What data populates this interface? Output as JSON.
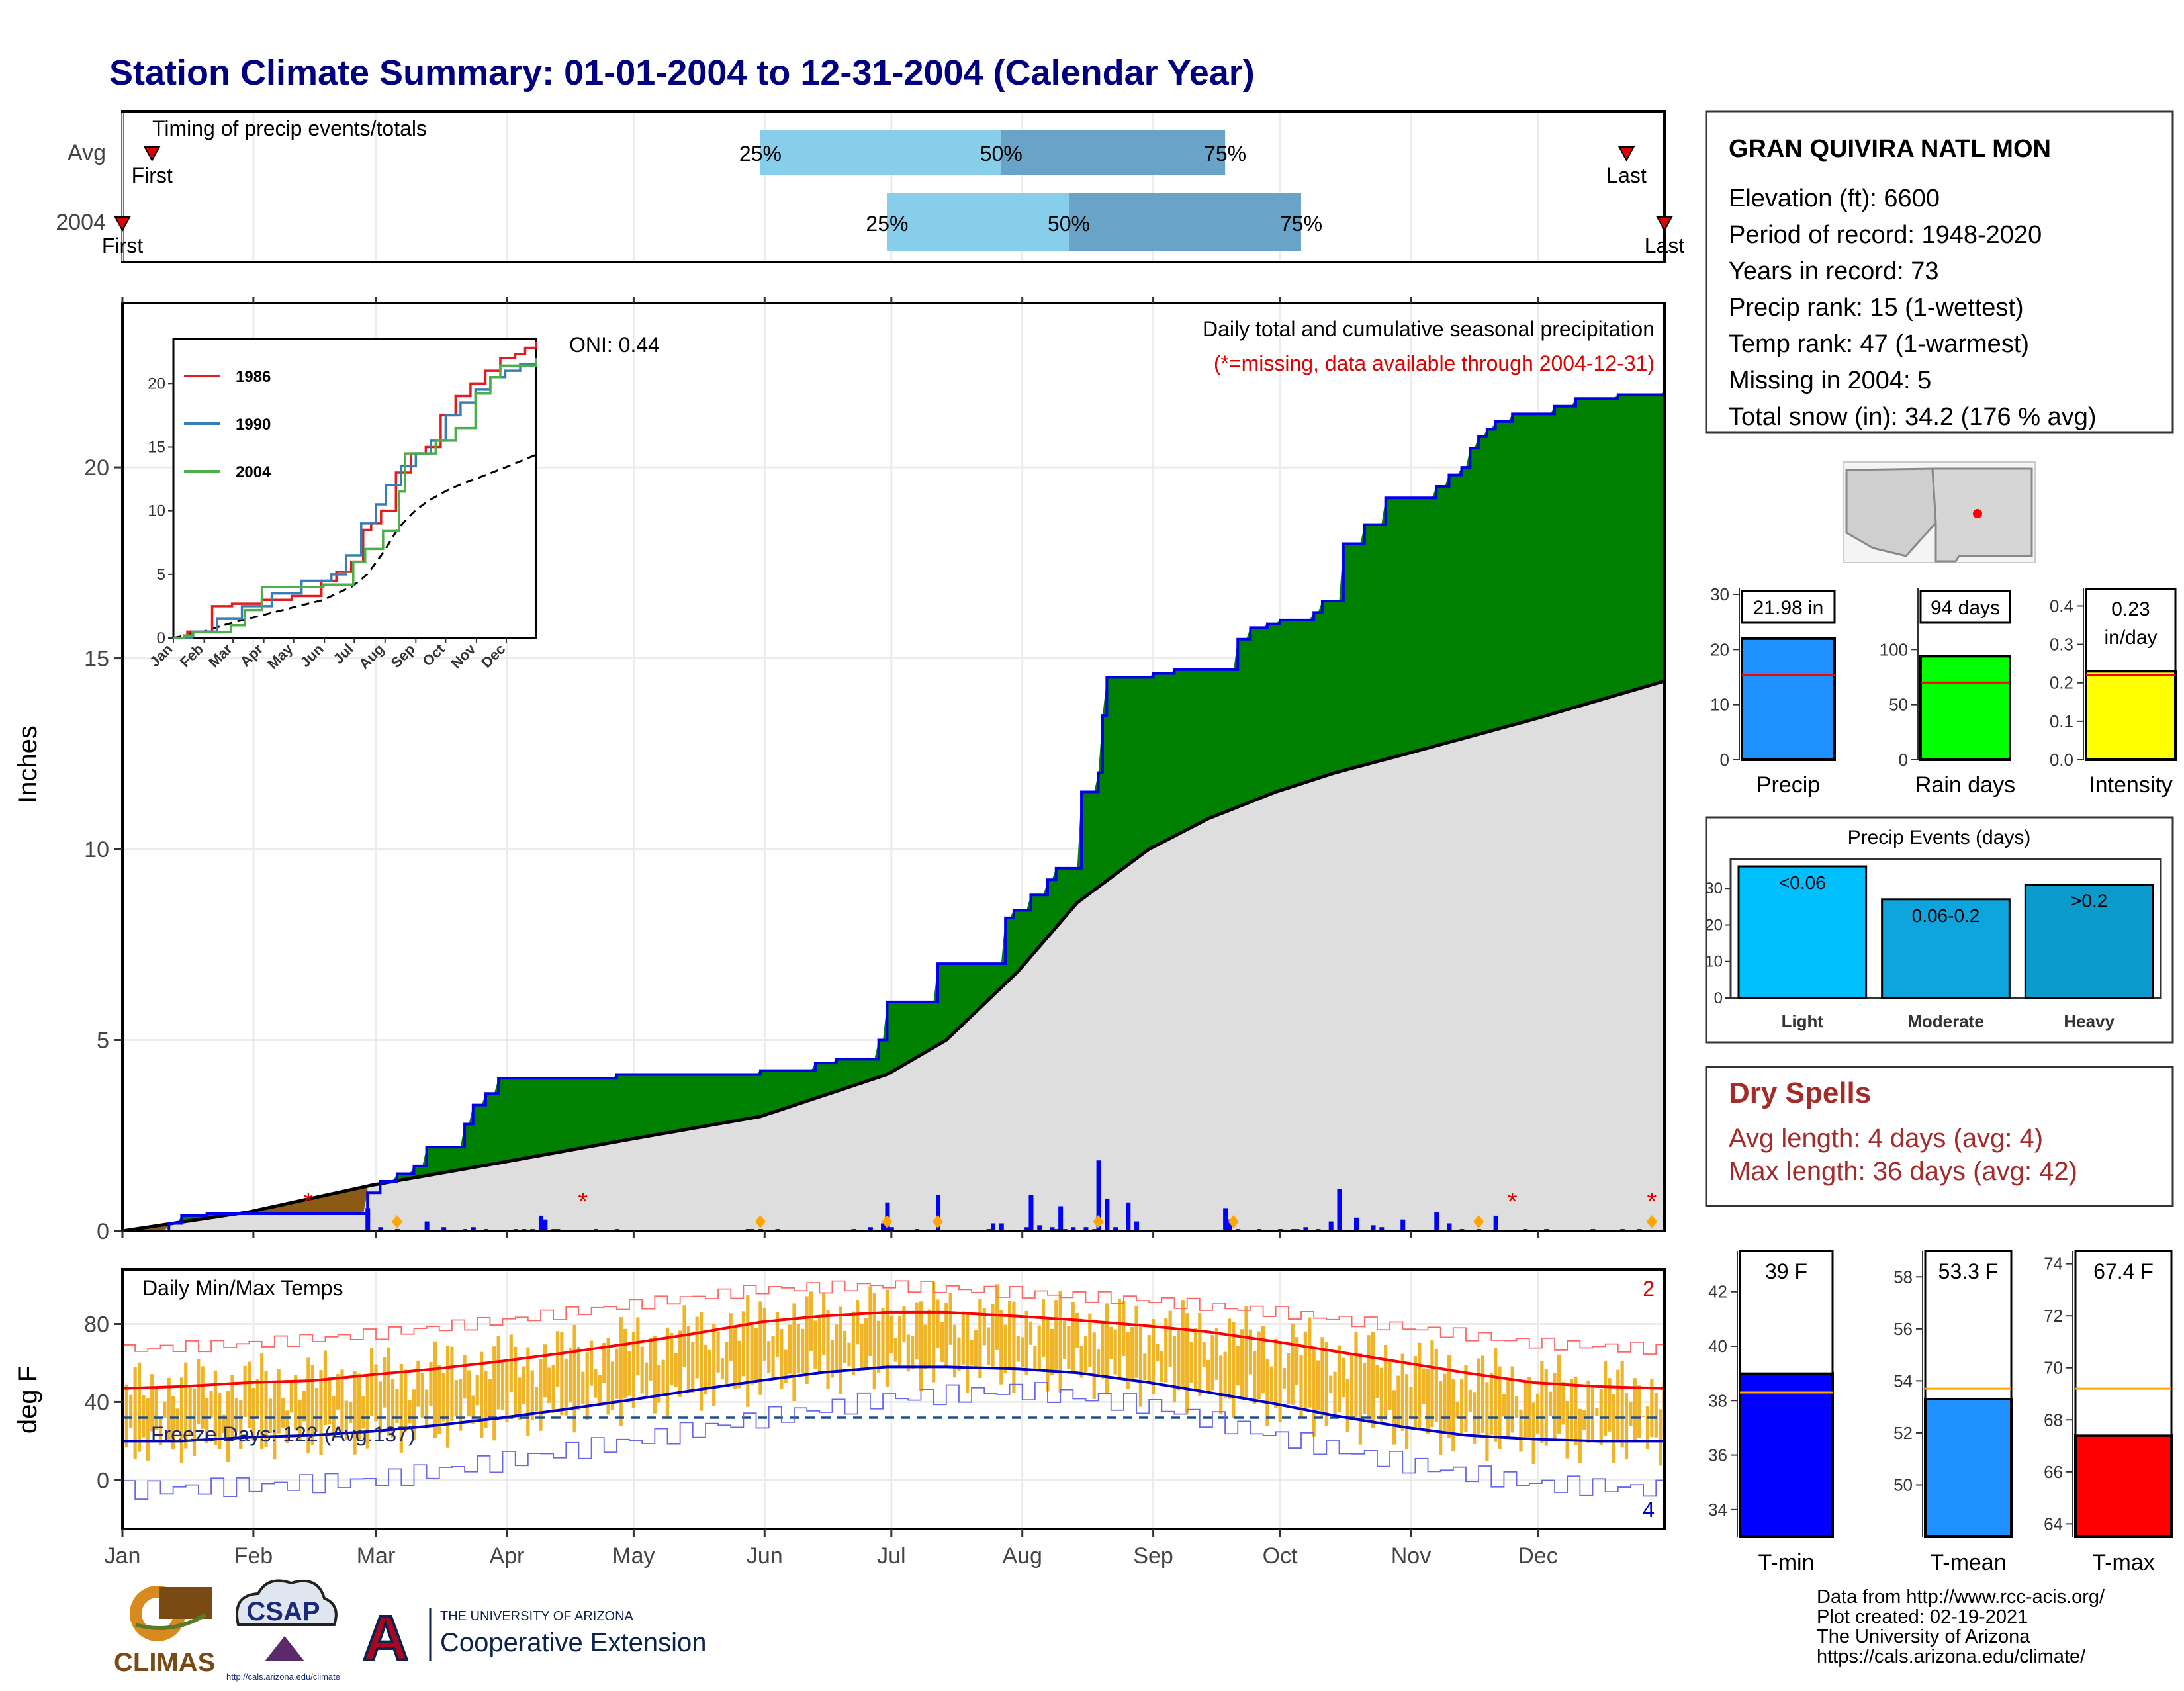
{
  "page_title": "Station Climate Summary: 01-01-2004 to 12-31-2004 (Calendar Year)",
  "colors": {
    "title": "#000080",
    "green_fill": "#008000",
    "avg_fill": "#dedede",
    "bar_blue": "#0000ff",
    "quartile_light": "#87ceeb",
    "quartile_dark": "#6aa3c8",
    "tmax": "#ff0000",
    "tmin": "#0000cc",
    "temp_bars": "#f0b429",
    "brown": "#8b5a14",
    "dry_spell_text": "#a52a2a"
  },
  "timing_panel": {
    "title": "Timing of precip events/totals",
    "rows": [
      "Avg",
      "2004"
    ],
    "first_label": "First",
    "last_label": "Last",
    "avg": {
      "first_doy": 8,
      "q25_doy": 152,
      "q50_doy": 209,
      "q75_doy": 262,
      "last_doy": 357
    },
    "y2004": {
      "first_doy": 1,
      "q25_doy": 182,
      "q50_doy": 225,
      "q75_doy": 280,
      "last_doy": 366
    },
    "quartile_labels": [
      "25%",
      "50%",
      "75%"
    ]
  },
  "precip_panel": {
    "ylabel": "Inches",
    "yticks": [
      0,
      5,
      10,
      15,
      20
    ],
    "ymax": 24.3,
    "label_main": "Daily total and cumulative seasonal precipitation",
    "label_missing": "(*=missing, data available through 2004-12-31)",
    "oni_label": "ONI: 0.44",
    "missing_marker": "*",
    "missing_doys": [
      45,
      110,
      330,
      363
    ],
    "snow_doys": [
      66,
      152,
      182,
      194,
      232,
      264,
      322,
      363
    ]
  },
  "inset": {
    "yticks": [
      0,
      5,
      10,
      15,
      20
    ],
    "months": [
      "Jan",
      "Feb",
      "Mar",
      "Apr",
      "May",
      "Jun",
      "Jul",
      "Aug",
      "Sep",
      "Oct",
      "Nov",
      "Dec"
    ],
    "legend": [
      {
        "label": "1986",
        "color": "#e41a1c"
      },
      {
        "label": "1990",
        "color": "#377eb8"
      },
      {
        "label": "2004",
        "color": "#4daf4a"
      }
    ]
  },
  "temp_panel": {
    "title": "Daily Min/Max Temps",
    "ylabel": "deg F",
    "yticks": [
      0,
      40,
      80
    ],
    "freeze_label": "Freeze Days: 122 (Avg:137)",
    "max_missing_count": "2",
    "min_missing_count": "4",
    "months": [
      "Jan",
      "Feb",
      "Mar",
      "Apr",
      "May",
      "Jun",
      "Jul",
      "Aug",
      "Sep",
      "Oct",
      "Nov",
      "Dec"
    ]
  },
  "station_info": {
    "name": "GRAN QUIVIRA NATL MON",
    "lines": [
      "Elevation (ft): 6600",
      "Period of record: 1948-2020",
      "Years in record: 73",
      "Precip rank: 15 (1-wettest)",
      "Temp rank: 47 (1-warmest)",
      "Missing in 2004: 5",
      "Total snow (in): 34.2 (176 % avg)"
    ]
  },
  "summary_bars": [
    {
      "label": "Precip",
      "value": 21.98,
      "avg": 15.3,
      "display": "21.98 in",
      "display2": "",
      "color": "#1e90ff",
      "yticks": [
        0,
        10,
        20,
        30
      ],
      "ymin": 0,
      "ymax": 30
    },
    {
      "label": "Rain days",
      "value": 94,
      "avg": 70,
      "display": "94 days",
      "display2": "",
      "color": "#00ff00",
      "yticks": [
        0,
        50,
        100
      ],
      "ymin": 0,
      "ymax": 150
    },
    {
      "label": "Intensity",
      "value": 0.23,
      "avg": 0.22,
      "display": "0.23",
      "display2": "in/day",
      "color": "#ffff00",
      "yticks": [
        0.0,
        0.1,
        0.2,
        0.3,
        0.4
      ],
      "ymin": 0,
      "ymax": 0.43
    }
  ],
  "precip_events": {
    "title": "Precip Events (days)",
    "yticks": [
      0,
      10,
      20,
      30
    ],
    "ymax": 38,
    "bars": [
      {
        "category": "Light",
        "inner_label": "<0.06",
        "value": 36,
        "color": "#00bfff"
      },
      {
        "category": "Moderate",
        "inner_label": "0.06-0.2",
        "value": 27,
        "color": "#0ea5dd"
      },
      {
        "category": "Heavy",
        "inner_label": ">0.2",
        "value": 31,
        "color": "#0a9bcc"
      }
    ]
  },
  "dry_spells": {
    "title": "Dry Spells",
    "avg_length": "Avg length: 4 days (avg: 4)",
    "max_length": "Max length: 36 days (avg: 42)"
  },
  "temp_bars": [
    {
      "label": "T-min",
      "value": 39.0,
      "avg": 38.3,
      "display": "39 F",
      "color": "#0000ff",
      "yticks": [
        34,
        36,
        38,
        40,
        42
      ],
      "ymin": 33,
      "ymax": 43.5
    },
    {
      "label": "T-mean",
      "value": 53.3,
      "avg": 53.7,
      "display": "53.3 F",
      "color": "#1e90ff",
      "yticks": [
        50,
        52,
        54,
        56,
        58
      ],
      "ymin": 48,
      "ymax": 59
    },
    {
      "label": "T-max",
      "value": 67.4,
      "avg": 69.2,
      "display": "67.4 F",
      "color": "#ff0000",
      "yticks": [
        64,
        66,
        68,
        70,
        72,
        74
      ],
      "ymin": 63.5,
      "ymax": 74.5
    }
  ],
  "footer": {
    "lines": [
      "Data from http://www.rcc-acis.org/",
      "Plot created: 02-19-2021",
      "The University of Arizona",
      "https://cals.arizona.edu/climate/"
    ]
  },
  "logos": {
    "climas": "CLIMAS",
    "csap": "CSAP",
    "csap_url": "http://cals.arizona.edu/climate",
    "ua_small": "THE UNIVERSITY OF ARIZONA",
    "ua_large": "Cooperative Extension"
  },
  "chart_data": [
    {
      "type": "area",
      "title": "Daily total and cumulative seasonal precipitation",
      "ylabel": "Inches",
      "ylim": [
        0,
        24.3
      ],
      "x_unit": "day of year 2004",
      "cumulative_2004": {
        "x": [
          1,
          12,
          15,
          21,
          58,
          59,
          62,
          66,
          70,
          73,
          75,
          80,
          82,
          84,
          87,
          90,
          105,
          108,
          110,
          113,
          118,
          150,
          152,
          155,
          165,
          170,
          180,
          182,
          185,
          190,
          194,
          200,
          205,
          210,
          212,
          216,
          220,
          222,
          225,
          228,
          232,
          233,
          234,
          238,
          245,
          250,
          255,
          260,
          265,
          268,
          272,
          275,
          280,
          283,
          285,
          290,
          295,
          300,
          305,
          310,
          312,
          315,
          318,
          320,
          322,
          324,
          326,
          330,
          335,
          340,
          345,
          350,
          355,
          360,
          366
        ],
        "y": [
          0.0,
          0.2,
          0.4,
          0.45,
          0.45,
          1.0,
          1.3,
          1.5,
          1.7,
          2.2,
          2.2,
          2.2,
          2.8,
          3.3,
          3.6,
          4.0,
          4.0,
          4.0,
          4.0,
          4.0,
          4.1,
          4.1,
          4.2,
          4.2,
          4.4,
          4.5,
          5.0,
          6.0,
          6.0,
          6.0,
          7.0,
          7.0,
          7.0,
          8.2,
          8.4,
          8.8,
          9.2,
          9.5,
          9.5,
          11.5,
          12.0,
          13.5,
          14.5,
          14.5,
          14.6,
          14.7,
          14.7,
          14.7,
          15.5,
          15.8,
          15.9,
          16.0,
          16.0,
          16.2,
          16.5,
          18.0,
          18.5,
          19.2,
          19.2,
          19.2,
          19.5,
          19.8,
          20.0,
          20.5,
          20.8,
          21.0,
          21.2,
          21.4,
          21.4,
          21.6,
          21.8,
          21.8,
          21.9,
          21.9,
          21.98
        ]
      },
      "cumulative_avg": {
        "x": [
          1,
          31,
          60,
          91,
          121,
          152,
          182,
          196,
          213,
          227,
          244,
          258,
          274,
          288,
          305,
          335,
          366
        ],
        "y": [
          0.0,
          0.5,
          1.2,
          1.8,
          2.4,
          3.0,
          4.1,
          5.0,
          6.8,
          8.6,
          10.0,
          10.8,
          11.5,
          12.0,
          12.5,
          13.4,
          14.4
        ]
      },
      "daily_bars": {
        "x": [
          59,
          62,
          66,
          73,
          77,
          82,
          84,
          87,
          94,
          96,
          98,
          100,
          101,
          103,
          104,
          113,
          118,
          149,
          150,
          152,
          156,
          174,
          178,
          181,
          182,
          183,
          189,
          194,
          206,
          207,
          209,
          215,
          216,
          218,
          221,
          222,
          223,
          224,
          226,
          229,
          231,
          232,
          234,
          236,
          239,
          241,
          262,
          263,
          265,
          270,
          275,
          278,
          279,
          281,
          284,
          287,
          289,
          293,
          297,
          299,
          304,
          312,
          315,
          318,
          322,
          326,
          333,
          338,
          349,
          356,
          360
        ],
        "y": [
          0.6,
          0.1,
          0.05,
          0.25,
          0.1,
          0.05,
          0.1,
          0.05,
          0.05,
          0.05,
          0.05,
          0.4,
          0.3,
          0.05,
          0.05,
          0.05,
          0.05,
          0.05,
          0.05,
          0.05,
          0.05,
          0.05,
          0.1,
          0.2,
          0.75,
          0.1,
          0.05,
          0.95,
          0.05,
          0.2,
          0.2,
          0.1,
          0.95,
          0.15,
          0.1,
          0.05,
          0.65,
          0.05,
          0.1,
          0.1,
          0.05,
          1.85,
          0.85,
          0.1,
          0.75,
          0.25,
          0.6,
          0.3,
          0.05,
          0.05,
          0.05,
          0.05,
          0.05,
          0.1,
          0.05,
          0.25,
          1.1,
          0.35,
          0.15,
          0.1,
          0.3,
          0.5,
          0.2,
          0.05,
          0.05,
          0.4,
          0.05,
          0.05,
          0.05,
          0.05,
          0.05
        ]
      }
    },
    {
      "type": "line",
      "title": "",
      "ylim": [
        0,
        24
      ],
      "xlim": [
        1,
        366
      ],
      "xticks": [
        "Jan",
        "Feb",
        "Mar",
        "Apr",
        "May",
        "Jun",
        "Jul",
        "Aug",
        "Sep",
        "Oct",
        "Nov",
        "Dec"
      ],
      "yticks": [
        0,
        5,
        10,
        15,
        20
      ],
      "series": [
        {
          "name": "1986",
          "x": [
            1,
            15,
            40,
            60,
            90,
            120,
            150,
            165,
            180,
            192,
            200,
            210,
            225,
            240,
            255,
            270,
            285,
            300,
            315,
            330,
            345,
            355,
            366
          ],
          "y": [
            0,
            0.5,
            2.5,
            2.7,
            3.0,
            3.3,
            4.5,
            5.2,
            6.0,
            8.5,
            9.0,
            10.0,
            13.0,
            14.5,
            15.0,
            17.5,
            19.0,
            20.0,
            21.0,
            22.0,
            22.3,
            22.8,
            23.3
          ]
        },
        {
          "name": "1990",
          "x": [
            1,
            20,
            45,
            70,
            100,
            130,
            160,
            175,
            190,
            205,
            215,
            230,
            245,
            260,
            275,
            290,
            305,
            320,
            335,
            350,
            366
          ],
          "y": [
            0,
            0.5,
            1.5,
            2.5,
            3.5,
            4.5,
            5.0,
            6.5,
            9.0,
            10.5,
            12.0,
            13.5,
            14.5,
            15.5,
            17.5,
            18.5,
            19.5,
            20.5,
            21.0,
            21.5,
            22.0
          ]
        },
        {
          "name": "2004",
          "x": [
            1,
            12,
            21,
            59,
            73,
            90,
            152,
            182,
            194,
            212,
            228,
            234,
            265,
            285,
            305,
            320,
            330,
            366
          ],
          "y": [
            0,
            0.2,
            0.45,
            1.0,
            2.2,
            4.0,
            4.2,
            6.0,
            7.0,
            8.4,
            11.5,
            14.5,
            15.5,
            16.5,
            19.2,
            20.5,
            21.4,
            21.98
          ]
        }
      ]
    },
    {
      "type": "line",
      "title": "Daily Min/Max Temps",
      "ylabel": "deg F",
      "ylim": [
        -25,
        108
      ],
      "series": [
        {
          "name": "",
          "x": [
            1,
            15,
            31,
            46,
            60,
            75,
            91,
            105,
            121,
            136,
            152,
            166,
            182,
            196,
            213,
            227,
            244,
            258,
            274,
            288,
            305,
            319,
            335,
            350,
            366
          ],
          "y": [
            47,
            48,
            50,
            51,
            54,
            57,
            61,
            65,
            70,
            75,
            81,
            84,
            86,
            86,
            84,
            82,
            79,
            76,
            71,
            66,
            60,
            55,
            50,
            48,
            47
          ]
        },
        {
          "name": "",
          "x": [
            1,
            15,
            31,
            46,
            60,
            75,
            91,
            105,
            121,
            136,
            152,
            166,
            182,
            196,
            213,
            227,
            244,
            258,
            274,
            288,
            305,
            319,
            335,
            350,
            366
          ],
          "y": [
            20,
            20,
            22,
            23,
            25,
            28,
            32,
            36,
            41,
            46,
            51,
            55,
            58,
            58,
            57,
            55,
            50,
            45,
            39,
            33,
            27,
            23,
            21,
            20,
            20
          ]
        },
        {
          "name": "",
          "x": [
            1,
            31,
            60,
            91,
            121,
            152,
            182,
            213,
            244,
            274,
            305,
            335,
            366
          ],
          "y": [
            67,
            70,
            75,
            82,
            90,
            98,
            100,
            96,
            92,
            86,
            78,
            70,
            67
          ]
        },
        {
          "name": "",
          "x": [
            1,
            31,
            60,
            91,
            121,
            152,
            182,
            213,
            244,
            274,
            305,
            335,
            366
          ],
          "y": [
            -5,
            -3,
            0,
            10,
            20,
            32,
            42,
            46,
            38,
            22,
            8,
            -2,
            -5
          ]
        }
      ],
      "hline_freezing": 32
    },
    {
      "type": "bar",
      "title": "Precip Events (days)",
      "categories": [
        "Light",
        "Moderate",
        "Heavy"
      ],
      "values": [
        36,
        27,
        31
      ],
      "ylim": [
        0,
        38
      ]
    },
    {
      "type": "bar",
      "title": "",
      "categories": [
        "Precip",
        "Rain days",
        "Intensity"
      ],
      "values": [
        21.98,
        94,
        0.23
      ]
    },
    {
      "type": "bar",
      "title": "",
      "categories": [
        "T-min",
        "T-mean",
        "T-max"
      ],
      "values": [
        39.0,
        53.3,
        67.4
      ]
    }
  ]
}
